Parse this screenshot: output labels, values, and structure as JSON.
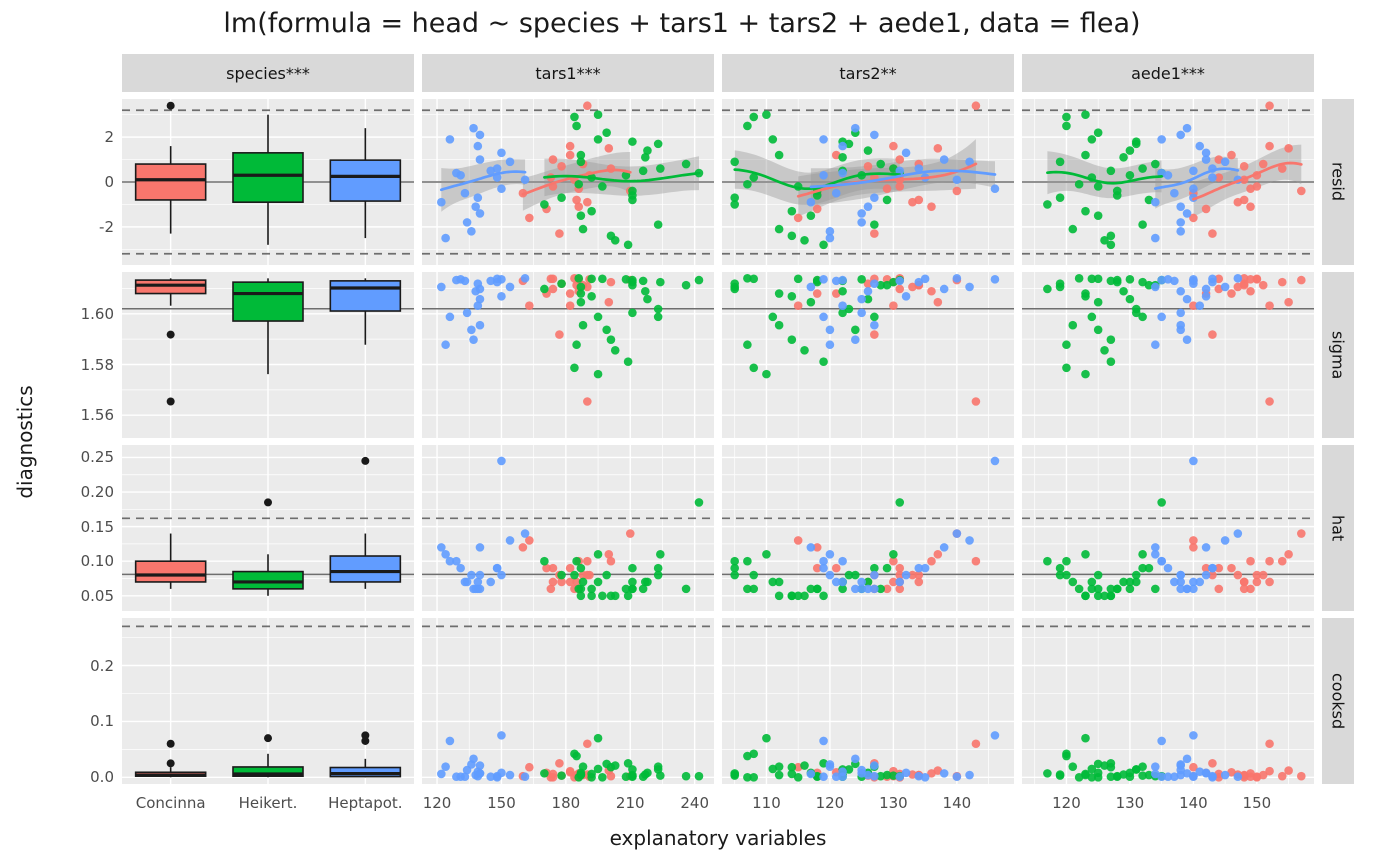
{
  "chart_data": {
    "type": "scatter",
    "subtype": "faceted model-diagnostics grid (boxplots for categorical column, scatter + smooth for continuous columns)",
    "title": "lm(formula = head ~ species + tars1 + tars2 + aede1, data = flea)",
    "xlabel": "explanatory variables",
    "ylabel": "diagnostics",
    "legend_position": "none",
    "colors": [
      "#F8766D",
      "#00BA38",
      "#619CFF"
    ],
    "panel_background": "#EBEBEB",
    "strip_background": "#D9D9D9",
    "col_facets": [
      {
        "key": "species",
        "label": "species***",
        "scale": "categorical",
        "categories": [
          "Concinna",
          "Heikert.",
          "Heptapot."
        ]
      },
      {
        "key": "tars1",
        "label": "tars1***",
        "scale": "continuous",
        "domain": [
          113,
          249
        ],
        "ticks": [
          120,
          150,
          180,
          210,
          240
        ],
        "tick_labels": [
          "120",
          "150",
          "180",
          "210",
          "240"
        ]
      },
      {
        "key": "tars2",
        "label": "tars2**",
        "scale": "continuous",
        "domain": [
          103,
          149
        ],
        "ticks": [
          110,
          120,
          130,
          140
        ],
        "tick_labels": [
          "110",
          "120",
          "130",
          "140"
        ]
      },
      {
        "key": "aede1",
        "label": "aede1***",
        "scale": "continuous",
        "domain": [
          113,
          159
        ],
        "ticks": [
          120,
          130,
          140,
          150
        ],
        "tick_labels": [
          "120",
          "130",
          "140",
          "150"
        ]
      }
    ],
    "row_facets": [
      {
        "key": "resid",
        "label": "resid",
        "domain": [
          -3.7,
          3.7
        ],
        "ticks": [
          -2,
          0,
          2
        ],
        "tick_labels": [
          "-2",
          "0",
          "2"
        ],
        "solid_line": 0,
        "dashed_lines": [
          -3.2,
          3.2
        ],
        "smooth": true
      },
      {
        "key": "sigma",
        "label": "sigma",
        "domain": [
          1.551,
          1.6165
        ],
        "ticks": [
          1.56,
          1.58,
          1.6
        ],
        "tick_labels": [
          "1.56",
          "1.58",
          "1.60"
        ],
        "solid_line": 1.602,
        "dashed_lines": [],
        "smooth": false
      },
      {
        "key": "hat",
        "label": "hat",
        "domain": [
          0.028,
          0.268
        ],
        "ticks": [
          0.05,
          0.1,
          0.15,
          0.2,
          0.25
        ],
        "tick_labels": [
          "0.05",
          "0.10",
          "0.15",
          "0.20",
          "0.25"
        ],
        "solid_line": 0.081,
        "dashed_lines": [
          0.162
        ],
        "smooth": false
      },
      {
        "key": "cooksd",
        "label": "cooksd",
        "domain": [
          -0.012,
          0.285
        ],
        "ticks": [
          0,
          0.1,
          0.2
        ],
        "tick_labels": [
          "0.0",
          "0.1",
          "0.2"
        ],
        "solid_line": null,
        "dashed_lines": [
          0.27
        ],
        "smooth": false
      }
    ],
    "observations": {
      "species": [
        0,
        0,
        0,
        0,
        0,
        0,
        0,
        0,
        0,
        0,
        0,
        0,
        0,
        0,
        0,
        0,
        0,
        0,
        0,
        0,
        0,
        1,
        1,
        1,
        1,
        1,
        1,
        1,
        1,
        1,
        1,
        1,
        1,
        1,
        1,
        1,
        1,
        1,
        1,
        1,
        1,
        1,
        1,
        1,
        1,
        1,
        1,
        1,
        1,
        1,
        1,
        1,
        2,
        2,
        2,
        2,
        2,
        2,
        2,
        2,
        2,
        2,
        2,
        2,
        2,
        2,
        2,
        2,
        2,
        2,
        2,
        2,
        2,
        2
      ],
      "tars1": [
        191,
        185,
        200,
        173,
        171,
        160,
        188,
        186,
        174,
        163,
        190,
        174,
        201,
        190,
        182,
        184,
        177,
        178,
        210,
        182,
        186,
        186,
        211,
        201,
        242,
        184,
        211,
        217,
        223,
        208,
        199,
        211,
        218,
        203,
        192,
        195,
        211,
        187,
        192,
        223,
        188,
        216,
        185,
        178,
        187,
        187,
        224,
        209,
        195,
        197,
        236,
        170,
        145,
        140,
        140,
        131,
        139,
        139,
        136,
        129,
        140,
        133,
        137,
        134,
        148,
        154,
        150,
        124,
        150,
        148,
        138,
        126,
        161,
        122
      ],
      "tars2": [
        131,
        134,
        137,
        127,
        118,
        118,
        134,
        129,
        131,
        115,
        143,
        131,
        130,
        133,
        130,
        131,
        127,
        126,
        140,
        121,
        136,
        107,
        122,
        114,
        131,
        108,
        118,
        122,
        127,
        125,
        124,
        129,
        126,
        116,
        108,
        110,
        118,
        105,
        114,
        123,
        112,
        122,
        107,
        105,
        112,
        117,
        130,
        119,
        111,
        115,
        128,
        105,
        131,
        125,
        127,
        119,
        127,
        122,
        120,
        122,
        138,
        121,
        124,
        125,
        135,
        142,
        146,
        120,
        132,
        134,
        126,
        119,
        140,
        117
      ],
      "aede1": [
        150,
        148,
        155,
        144,
        142,
        140,
        151,
        149,
        144,
        140,
        152,
        150,
        154,
        147,
        152,
        148,
        143,
        148,
        157,
        146,
        149,
        122,
        131,
        127,
        135,
        120,
        128,
        129,
        132,
        130,
        125,
        133,
        130,
        126,
        124,
        123,
        128,
        119,
        123,
        131,
        121,
        127,
        120,
        119,
        123,
        125,
        132,
        127,
        124,
        125,
        134,
        117,
        140,
        139,
        138,
        136,
        140,
        141,
        138,
        135,
        142,
        137,
        139,
        138,
        143,
        145,
        140,
        134,
        142,
        143,
        138,
        135,
        147,
        134
      ],
      "resid": [
        0.3,
        -0.8,
        1.5,
        0.2,
        -1.2,
        -0.5,
        0.8,
        -0.3,
        1.0,
        -1.6,
        3.4,
        -0.2,
        0.6,
        -0.9,
        1.6,
        0.1,
        -2.3,
        0.7,
        -0.4,
        1.2,
        -1.1,
        -0.1,
        1.8,
        -2.4,
        0.4,
        2.9,
        -0.6,
        1.1,
        -1.9,
        0.3,
        2.2,
        -0.8,
        1.4,
        -2.6,
        0.2,
        3.0,
        -0.4,
        0.9,
        -1.3,
        1.7,
        -2.1,
        0.5,
        2.5,
        -0.7,
        1.2,
        -1.5,
        0.6,
        -2.8,
        1.9,
        -0.2,
        0.8,
        -1.0,
        0.5,
        -1.4,
        2.1,
        0.3,
        -0.7,
        1.6,
        -2.2,
        0.4,
        1.0,
        -0.5,
        2.4,
        -1.8,
        0.2,
        0.9,
        -0.3,
        -2.5,
        1.3,
        0.6,
        -1.1,
        1.9,
        0.1,
        -0.9
      ],
      "sigma": [
        1.6136,
        1.6113,
        1.6046,
        1.6138,
        1.608,
        1.613,
        1.6113,
        1.6136,
        1.6098,
        1.6032,
        1.5654,
        1.6138,
        1.6125,
        1.6106,
        1.6032,
        1.614,
        1.5918,
        1.6119,
        1.6133,
        1.608,
        1.6089,
        1.614,
        1.6004,
        1.5898,
        1.6133,
        1.5787,
        1.6125,
        1.6089,
        1.5988,
        1.6136,
        1.5937,
        1.6113,
        1.6058,
        1.5856,
        1.6138,
        1.5762,
        1.6133,
        1.6106,
        1.6069,
        1.6019,
        1.5955,
        1.613,
        1.5878,
        1.6119,
        1.608,
        1.6046,
        1.6125,
        1.5811,
        1.5988,
        1.6138,
        1.6113,
        1.6098,
        1.613,
        1.6058,
        1.5955,
        1.6136,
        1.6119,
        1.6032,
        1.5937,
        1.6133,
        1.6098,
        1.613,
        1.5898,
        1.6004,
        1.6138,
        1.6106,
        1.6136,
        1.5878,
        1.6069,
        1.6125,
        1.6089,
        1.5988,
        1.614,
        1.6106
      ],
      "hat": [
        0.08,
        0.07,
        0.11,
        0.06,
        0.09,
        0.12,
        0.08,
        0.06,
        0.09,
        0.13,
        0.1,
        0.07,
        0.1,
        0.08,
        0.07,
        0.06,
        0.08,
        0.07,
        0.14,
        0.09,
        0.1,
        0.06,
        0.07,
        0.05,
        0.185,
        0.08,
        0.06,
        0.07,
        0.09,
        0.06,
        0.08,
        0.09,
        0.07,
        0.05,
        0.06,
        0.11,
        0.06,
        0.09,
        0.05,
        0.08,
        0.07,
        0.06,
        0.1,
        0.08,
        0.05,
        0.06,
        0.11,
        0.05,
        0.07,
        0.05,
        0.06,
        0.1,
        0.07,
        0.06,
        0.08,
        0.09,
        0.06,
        0.07,
        0.08,
        0.1,
        0.12,
        0.07,
        0.06,
        0.07,
        0.09,
        0.13,
        0.245,
        0.11,
        0.08,
        0.09,
        0.06,
        0.1,
        0.14,
        0.12
      ],
      "cooksd": [
        0.001,
        0.004,
        0.012,
        0.0,
        0.008,
        0.002,
        0.004,
        0.001,
        0.006,
        0.018,
        0.06,
        0.0,
        0.002,
        0.005,
        0.011,
        0.0,
        0.025,
        0.003,
        0.002,
        0.009,
        0.007,
        0.0,
        0.014,
        0.018,
        0.002,
        0.042,
        0.002,
        0.005,
        0.019,
        0.001,
        0.024,
        0.004,
        0.008,
        0.021,
        0.0,
        0.07,
        0.001,
        0.005,
        0.006,
        0.014,
        0.019,
        0.001,
        0.038,
        0.003,
        0.004,
        0.008,
        0.003,
        0.025,
        0.015,
        0.0,
        0.002,
        0.007,
        0.001,
        0.007,
        0.021,
        0.001,
        0.002,
        0.01,
        0.023,
        0.001,
        0.007,
        0.001,
        0.033,
        0.013,
        0.0,
        0.004,
        0.075,
        0.019,
        0.008,
        0.002,
        0.004,
        0.065,
        0.001,
        0.006
      ]
    }
  }
}
